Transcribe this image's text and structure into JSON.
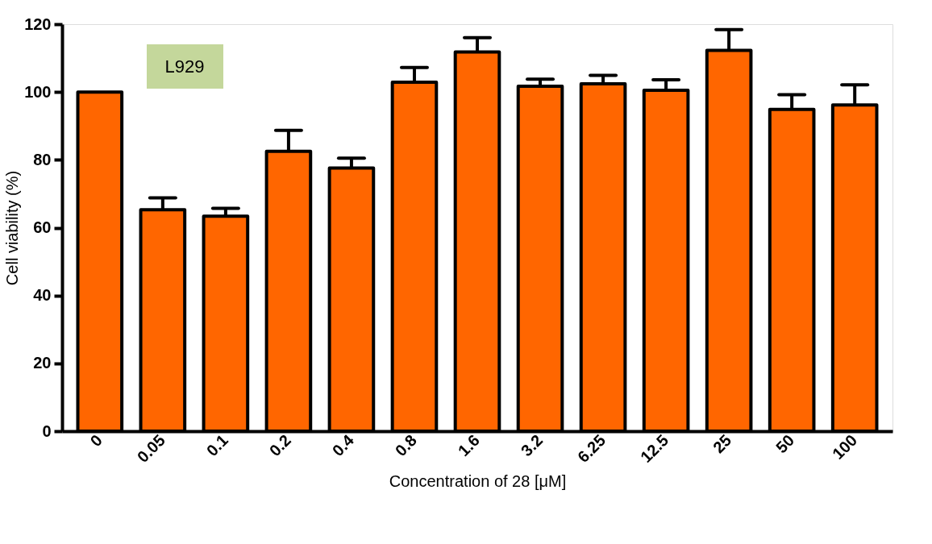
{
  "chart_data": {
    "type": "bar",
    "xlabel": "Concentration of 28 [μM]",
    "ylabel": "Cell viability (%)",
    "categories": [
      "0",
      "0.05",
      "0.1",
      "0.2",
      "0.4",
      "0.8",
      "1.6",
      "3.2",
      "6.25",
      "12.5",
      "25",
      "50",
      "100"
    ],
    "values": [
      100,
      65.3,
      63.4,
      82.5,
      77.6,
      102.9,
      111.8,
      101.7,
      102.4,
      100.5,
      112.3,
      94.9,
      96.2
    ],
    "errors": [
      null,
      [
        65.3,
        68.8
      ],
      [
        63.4,
        65.7
      ],
      [
        82.5,
        88.7
      ],
      [
        77.6,
        80.5
      ],
      [
        102.9,
        107.2
      ],
      [
        111.8,
        116.0
      ],
      [
        101.7,
        103.8
      ],
      [
        102.4,
        104.9
      ],
      [
        100.5,
        103.6
      ],
      [
        112.3,
        118.4
      ],
      [
        94.9,
        99.2
      ],
      [
        96.2,
        102.1
      ]
    ],
    "color": "#ff6600",
    "ylim": [
      0,
      120
    ],
    "yticks": [
      0,
      20,
      40,
      60,
      80,
      100,
      120
    ],
    "grid": false,
    "annotations": [
      "L929"
    ]
  }
}
